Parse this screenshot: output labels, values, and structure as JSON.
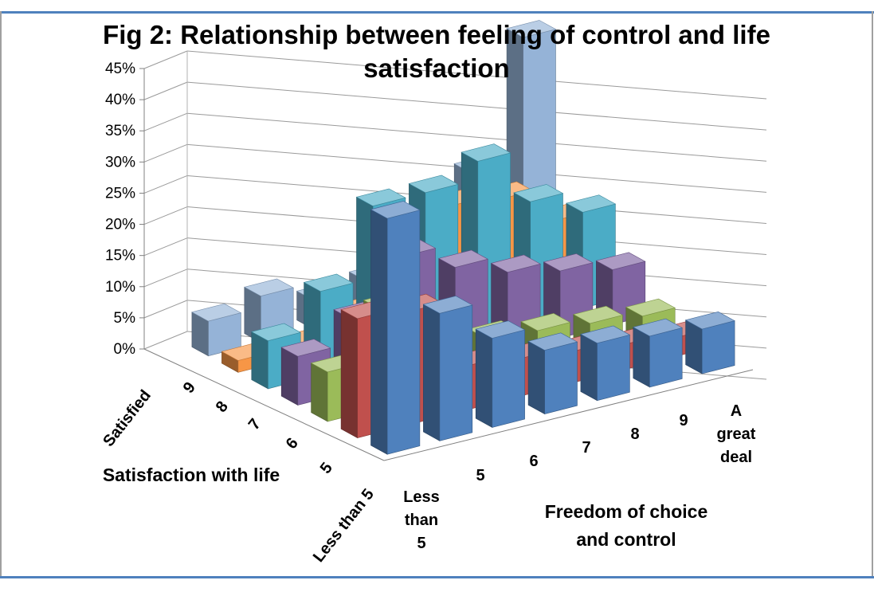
{
  "chart_data": {
    "type": "bar",
    "subtype": "3d-column",
    "title_lines": [
      "Fig 2: Relationship between feeling of control and life",
      "satisfaction"
    ],
    "ylim": [
      0,
      45
    ],
    "y_ticks": [
      "0%",
      "5%",
      "10%",
      "15%",
      "20%",
      "25%",
      "30%",
      "35%",
      "40%",
      "45%"
    ],
    "x_axis_title_lines": [
      "Freedom of choice",
      "and control"
    ],
    "depth_axis_title": "Satisfaction with life",
    "x_categories": [
      [
        "Less",
        "than",
        "5"
      ],
      [
        "5"
      ],
      [
        "6"
      ],
      [
        "7"
      ],
      [
        "8"
      ],
      [
        "9"
      ],
      [
        "A",
        "great",
        "deal"
      ]
    ],
    "series": [
      {
        "name": "Less than 5",
        "color": "#4f81bd",
        "values": [
          37,
          20,
          14,
          10,
          9,
          8,
          7
        ]
      },
      {
        "name": "5",
        "color": "#c0504d",
        "values": [
          19,
          18,
          7,
          6,
          5,
          4,
          3
        ]
      },
      {
        "name": "6",
        "color": "#9bbb59",
        "values": [
          8,
          16,
          12,
          7,
          6,
          5,
          4
        ]
      },
      {
        "name": "7",
        "color": "#8064a2",
        "values": [
          8,
          12,
          20,
          16,
          13,
          11,
          9
        ]
      },
      {
        "name": "8",
        "color": "#4bacc6",
        "values": [
          8,
          14,
          26,
          26,
          29,
          20,
          16
        ]
      },
      {
        "name": "9",
        "color": "#f79646",
        "values": [
          2,
          2,
          5,
          11,
          19,
          18,
          12
        ]
      },
      {
        "name": "Satisfied",
        "color": "#95b3d7",
        "values": [
          6,
          8,
          5,
          6,
          10,
          20,
          41
        ]
      }
    ]
  }
}
